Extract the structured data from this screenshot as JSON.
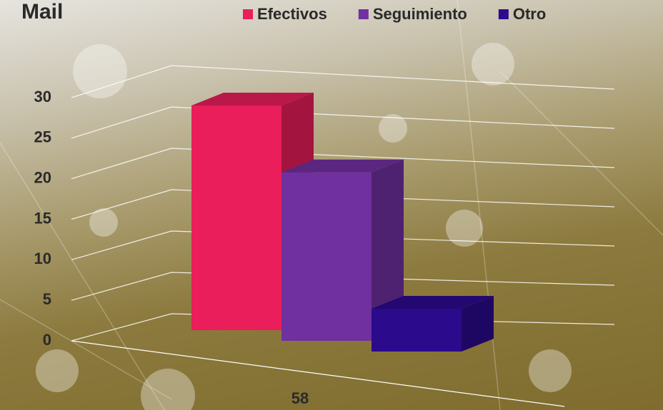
{
  "chart_data": {
    "type": "bar3d",
    "title": "Mail",
    "categories": [
      "58"
    ],
    "series": [
      {
        "name": "Efectivos",
        "color": "#e91e5a",
        "values": [
          30
        ]
      },
      {
        "name": "Seguimiento",
        "color": "#7030a0",
        "values": [
          21
        ]
      },
      {
        "name": "Otro",
        "color": "#2b0a8c",
        "values": [
          5
        ]
      }
    ],
    "ylim": [
      0,
      30
    ],
    "yticks": [
      0,
      5,
      10,
      15,
      20,
      25,
      30
    ],
    "grid": true,
    "legend": "top"
  }
}
